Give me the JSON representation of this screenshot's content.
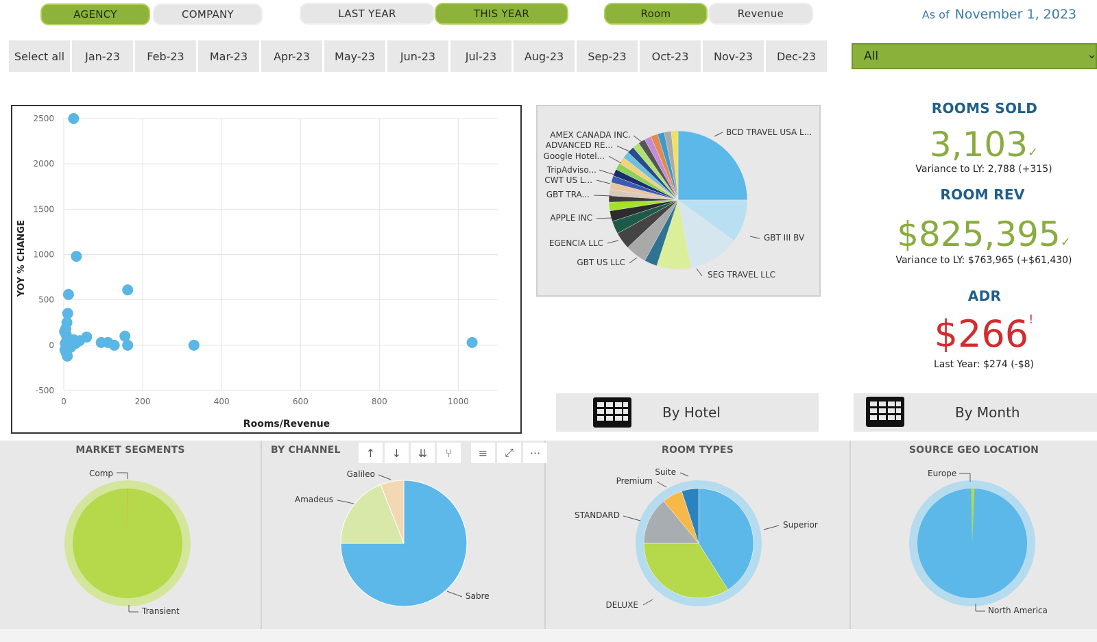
{
  "toggles": {
    "agency": "AGENCY",
    "company": "COMPANY",
    "last_year": "LAST YEAR",
    "this_year": "THIS YEAR",
    "room": "Room",
    "revenue": "Revenue"
  },
  "as_of": {
    "label": "As of",
    "date": "November 1, 2023"
  },
  "months": {
    "select_all": "Select all",
    "items": [
      "Jan-23",
      "Feb-23",
      "Mar-23",
      "Apr-23",
      "May-23",
      "Jun-23",
      "Jul-23",
      "Aug-23",
      "Sep-23",
      "Oct-23",
      "Nov-23",
      "Dec-23"
    ]
  },
  "filter": {
    "value": "All",
    "icon": "chevron-down-icon"
  },
  "kpis": {
    "rooms_sold": {
      "title": "ROOMS SOLD",
      "value": "3,103",
      "mark": "✓",
      "sub": "Variance to LY: 2,788 (+315)"
    },
    "room_rev": {
      "title": "ROOM REV",
      "value": "$825,395",
      "mark": "✓",
      "sub": "Variance to LY: $763,965 (+$61,430)"
    },
    "adr": {
      "title": "ADR",
      "value": "$266",
      "mark": "!",
      "sub": "Last Year: $274 (-$8)"
    }
  },
  "colors": {
    "accent_green": "#8db33a",
    "kpi_green": "#8aac3f",
    "kpi_red": "#d22b30",
    "kpi_title": "#1f5f8b",
    "point_blue": "#5ab6e4"
  },
  "nav": {
    "by_hotel": "By Hotel",
    "by_month": "By Month",
    "icon": "table-icon"
  },
  "toolbar": {
    "icons": [
      "arrow-up-icon",
      "arrow-down-icon",
      "double-arrow-down-icon",
      "expand-hierarchy-icon",
      "filter-icon",
      "focus-mode-icon",
      "more-options-icon"
    ],
    "more": "···"
  },
  "chart_data": [
    {
      "type": "scatter",
      "title": "",
      "xlabel": "Rooms/Revenue",
      "ylabel": "YOY % CHANGE",
      "xlim": [
        0,
        1100
      ],
      "ylim": [
        -500,
        2500
      ],
      "xticks": [
        0,
        200,
        400,
        600,
        800,
        1000
      ],
      "yticks": [
        -500,
        0,
        500,
        1000,
        1500,
        2000,
        2500
      ],
      "grid": true,
      "points": [
        {
          "x": 25,
          "y": 2500
        },
        {
          "x": 32,
          "y": 980
        },
        {
          "x": 162,
          "y": 610
        },
        {
          "x": 12,
          "y": 560
        },
        {
          "x": 10,
          "y": 350
        },
        {
          "x": 8,
          "y": 250
        },
        {
          "x": 5,
          "y": 180
        },
        {
          "x": 6,
          "y": 120
        },
        {
          "x": 8,
          "y": 80
        },
        {
          "x": 12,
          "y": 50
        },
        {
          "x": 4,
          "y": 20
        },
        {
          "x": 15,
          "y": 0
        },
        {
          "x": 18,
          "y": -20
        },
        {
          "x": 3,
          "y": -50
        },
        {
          "x": 6,
          "y": -80
        },
        {
          "x": 9,
          "y": -120
        },
        {
          "x": 20,
          "y": 30
        },
        {
          "x": 25,
          "y": 60
        },
        {
          "x": 30,
          "y": 20
        },
        {
          "x": 35,
          "y": 40
        },
        {
          "x": 58,
          "y": 90
        },
        {
          "x": 95,
          "y": 30
        },
        {
          "x": 112,
          "y": 30
        },
        {
          "x": 128,
          "y": 0
        },
        {
          "x": 155,
          "y": 100
        },
        {
          "x": 162,
          "y": 0
        },
        {
          "x": 330,
          "y": 0
        },
        {
          "x": 1035,
          "y": 30
        },
        {
          "x": 14,
          "y": -30
        },
        {
          "x": 22,
          "y": 10
        },
        {
          "x": 2,
          "y": 150
        },
        {
          "x": 40,
          "y": 50
        }
      ]
    },
    {
      "type": "pie",
      "title": "",
      "labels": [
        "BCD TRAVEL USA L...",
        "GBT III BV",
        "SEG TRAVEL LLC",
        "GBT US LLC",
        "EGENCIA LLC",
        "APPLE INC",
        "GBT TRA...",
        "CWT US L...",
        "TripAdviso...",
        "Google Hotel...",
        "ADVANCED RE...",
        "AMEX CANADA INC."
      ],
      "values": [
        25,
        10,
        12,
        8,
        3,
        5,
        4,
        3,
        2.5,
        2,
        1.5,
        1.5
      ],
      "other_value": 22.5
    },
    {
      "type": "pie",
      "title": "MARKET SEGMENTS",
      "labels": [
        "Transient",
        "Comp"
      ],
      "values": [
        99.8,
        0.2
      ]
    },
    {
      "type": "pie",
      "title": "BY CHANNEL",
      "labels": [
        "Sabre",
        "Amadeus",
        "Galileo"
      ],
      "values": [
        75,
        19,
        6
      ]
    },
    {
      "type": "pie",
      "title": "ROOM TYPES",
      "labels": [
        "Superior",
        "DELUXE",
        "STANDARD",
        "Premium",
        "Suite"
      ],
      "values": [
        41,
        34,
        14,
        6,
        5
      ]
    },
    {
      "type": "pie",
      "title": "SOURCE GEO LOCATION",
      "labels": [
        "North America",
        "Europe"
      ],
      "values": [
        99,
        1
      ]
    }
  ]
}
